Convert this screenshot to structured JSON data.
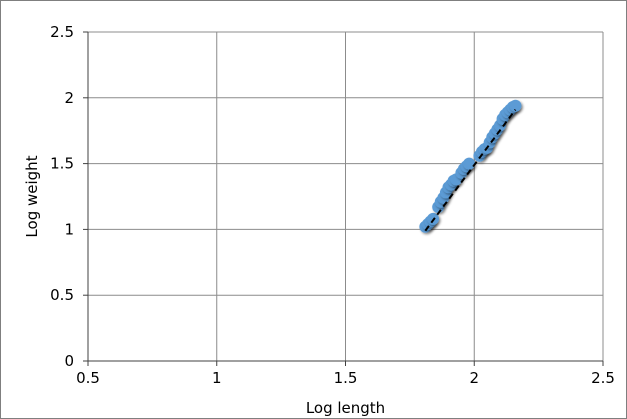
{
  "chart_data": {
    "type": "scatter",
    "title": "",
    "xlabel": "Log length",
    "ylabel": "Log weight",
    "xlim": [
      0.5,
      2.5
    ],
    "ylim": [
      0,
      2.5
    ],
    "xticks": [
      0.5,
      1,
      1.5,
      2,
      2.5
    ],
    "yticks": [
      0,
      0.5,
      1,
      1.5,
      2,
      2.5
    ],
    "xtick_labels": [
      "0.5",
      "1",
      "1.5",
      "2",
      "2.5"
    ],
    "ytick_labels": [
      "0",
      "0.5",
      "1",
      "1.5",
      "2",
      "2.5"
    ],
    "grid": true,
    "legend": "none",
    "series": [
      {
        "marker_color": "#5b9bd5",
        "points": [
          [
            1.81,
            1.02
          ],
          [
            1.82,
            1.04
          ],
          [
            1.83,
            1.06
          ],
          [
            1.84,
            1.08
          ],
          [
            1.86,
            1.17
          ],
          [
            1.87,
            1.21
          ],
          [
            1.88,
            1.24
          ],
          [
            1.89,
            1.28
          ],
          [
            1.9,
            1.32
          ],
          [
            1.91,
            1.34
          ],
          [
            1.92,
            1.37
          ],
          [
            1.93,
            1.38
          ],
          [
            1.95,
            1.43
          ],
          [
            1.96,
            1.46
          ],
          [
            1.97,
            1.48
          ],
          [
            1.98,
            1.5
          ],
          [
            2.02,
            1.56
          ],
          [
            2.03,
            1.59
          ],
          [
            2.04,
            1.61
          ],
          [
            2.05,
            1.62
          ],
          [
            2.06,
            1.66
          ],
          [
            2.07,
            1.7
          ],
          [
            2.08,
            1.73
          ],
          [
            2.09,
            1.76
          ],
          [
            2.1,
            1.79
          ],
          [
            2.11,
            1.84
          ],
          [
            2.12,
            1.87
          ],
          [
            2.13,
            1.89
          ],
          [
            2.14,
            1.91
          ],
          [
            2.15,
            1.93
          ],
          [
            2.16,
            1.94
          ]
        ]
      }
    ],
    "trendline": {
      "style": "dashed",
      "color": "#000000",
      "points": [
        [
          1.81,
          0.99
        ],
        [
          2.16,
          1.91
        ]
      ]
    }
  }
}
